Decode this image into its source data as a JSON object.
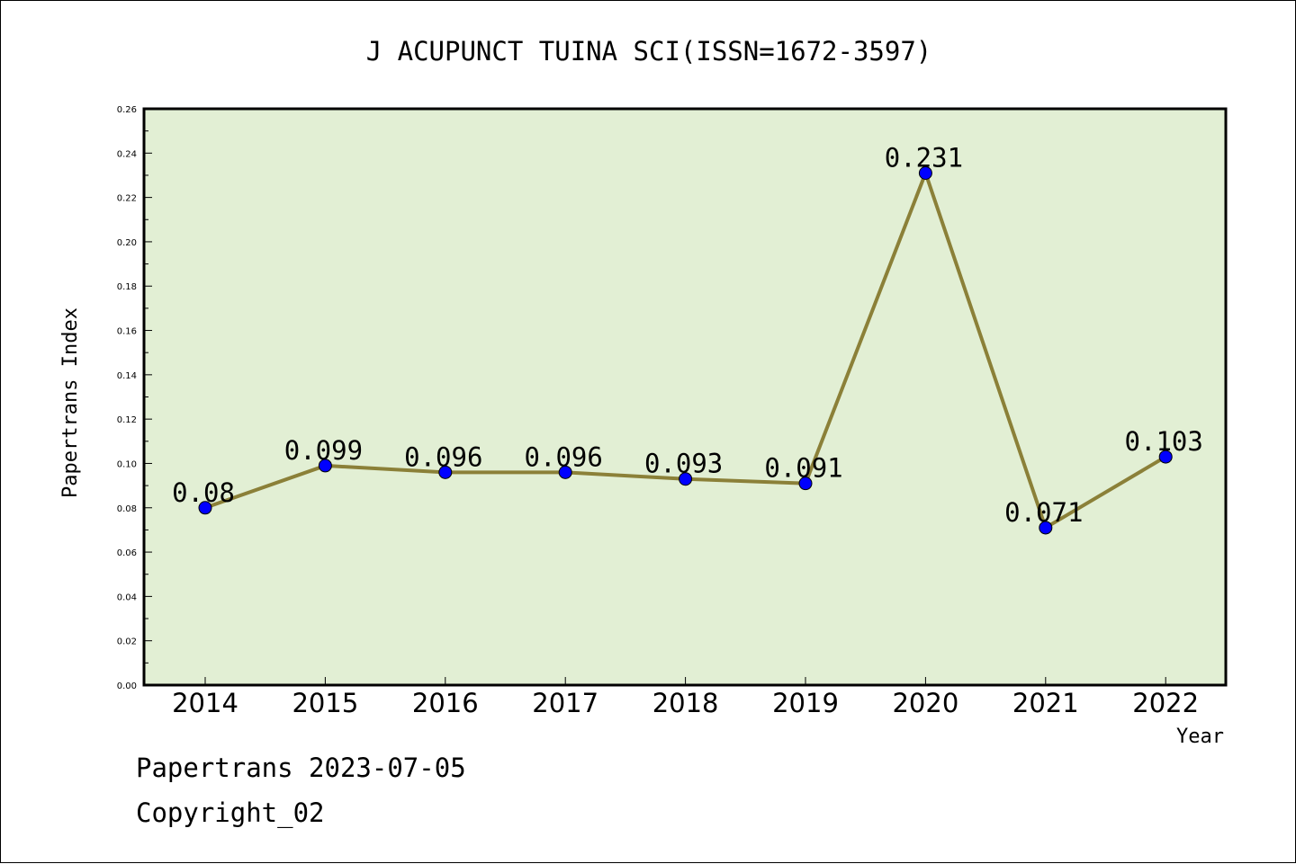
{
  "chart_data": {
    "type": "line",
    "title": "J ACUPUNCT TUINA SCI(ISSN=1672-3597)",
    "xlabel": "Year",
    "ylabel": "Papertrans Index",
    "categories": [
      "2014",
      "2015",
      "2016",
      "2017",
      "2018",
      "2019",
      "2020",
      "2021",
      "2022"
    ],
    "series": [
      {
        "values": [
          0.08,
          0.099,
          0.096,
          0.096,
          0.093,
          0.091,
          0.231,
          0.071,
          0.103
        ],
        "labels": [
          "0.08",
          "0.099",
          "0.096",
          "0.096",
          "0.093",
          "0.091",
          "0.231",
          "0.071",
          "0.103"
        ]
      }
    ],
    "ylim": [
      0,
      0.26
    ],
    "yticks": [
      "0.00",
      "0.02",
      "0.04",
      "0.06",
      "0.08",
      "0.10",
      "0.12",
      "0.14",
      "0.16",
      "0.18",
      "0.20",
      "0.22",
      "0.24",
      "0.26"
    ],
    "grid": false,
    "legend": "none"
  },
  "footer": {
    "line1": "Papertrans 2023-07-05",
    "line2": "Copyright_02"
  },
  "colors": {
    "plot_background": "#e2efd4",
    "line": "#8b8038",
    "marker": "#0000ff",
    "axis": "#000000"
  }
}
